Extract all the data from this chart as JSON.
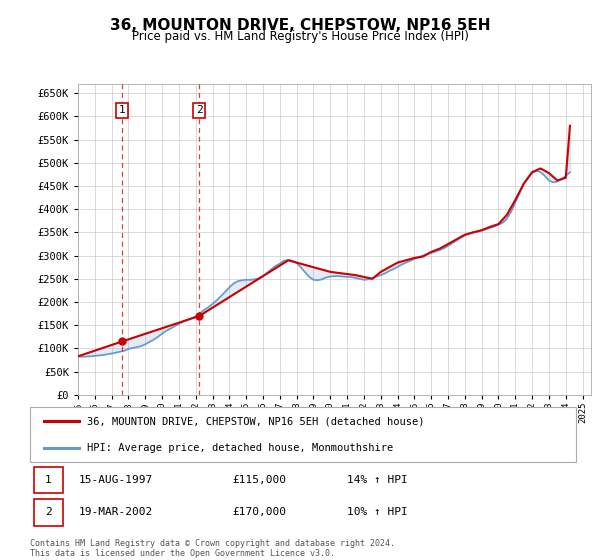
{
  "title": "36, MOUNTON DRIVE, CHEPSTOW, NP16 5EH",
  "subtitle": "Price paid vs. HM Land Registry's House Price Index (HPI)",
  "ylim": [
    0,
    670000
  ],
  "yticks": [
    0,
    50000,
    100000,
    150000,
    200000,
    250000,
    300000,
    350000,
    400000,
    450000,
    500000,
    550000,
    600000,
    650000
  ],
  "xlim_start": 1995.0,
  "xlim_end": 2025.5,
  "red_color": "#cc0000",
  "blue_color": "#6699cc",
  "background": "#ffffff",
  "grid_color": "#cccccc",
  "legend_label_red": "36, MOUNTON DRIVE, CHEPSTOW, NP16 5EH (detached house)",
  "legend_label_blue": "HPI: Average price, detached house, Monmouthshire",
  "sale1_x": 1997.62,
  "sale1_y": 115000,
  "sale2_x": 2002.21,
  "sale2_y": 170000,
  "table_rows": [
    [
      "1",
      "15-AUG-1997",
      "£115,000",
      "14% ↑ HPI"
    ],
    [
      "2",
      "19-MAR-2002",
      "£170,000",
      "10% ↑ HPI"
    ]
  ],
  "footer": "Contains HM Land Registry data © Crown copyright and database right 2024.\nThis data is licensed under the Open Government Licence v3.0.",
  "hpi_years": [
    1995.0,
    1995.25,
    1995.5,
    1995.75,
    1996.0,
    1996.25,
    1996.5,
    1996.75,
    1997.0,
    1997.25,
    1997.5,
    1997.75,
    1998.0,
    1998.25,
    1998.5,
    1998.75,
    1999.0,
    1999.25,
    1999.5,
    1999.75,
    2000.0,
    2000.25,
    2000.5,
    2000.75,
    2001.0,
    2001.25,
    2001.5,
    2001.75,
    2002.0,
    2002.25,
    2002.5,
    2002.75,
    2003.0,
    2003.25,
    2003.5,
    2003.75,
    2004.0,
    2004.25,
    2004.5,
    2004.75,
    2005.0,
    2005.25,
    2005.5,
    2005.75,
    2006.0,
    2006.25,
    2006.5,
    2006.75,
    2007.0,
    2007.25,
    2007.5,
    2007.75,
    2008.0,
    2008.25,
    2008.5,
    2008.75,
    2009.0,
    2009.25,
    2009.5,
    2009.75,
    2010.0,
    2010.25,
    2010.5,
    2010.75,
    2011.0,
    2011.25,
    2011.5,
    2011.75,
    2012.0,
    2012.25,
    2012.5,
    2012.75,
    2013.0,
    2013.25,
    2013.5,
    2013.75,
    2014.0,
    2014.25,
    2014.5,
    2014.75,
    2015.0,
    2015.25,
    2015.5,
    2015.75,
    2016.0,
    2016.25,
    2016.5,
    2016.75,
    2017.0,
    2017.25,
    2017.5,
    2017.75,
    2018.0,
    2018.25,
    2018.5,
    2018.75,
    2019.0,
    2019.25,
    2019.5,
    2019.75,
    2020.0,
    2020.25,
    2020.5,
    2020.75,
    2021.0,
    2021.25,
    2021.5,
    2021.75,
    2022.0,
    2022.25,
    2022.5,
    2022.75,
    2023.0,
    2023.25,
    2023.5,
    2023.75,
    2024.0,
    2024.25
  ],
  "hpi_values": [
    83000,
    82000,
    82500,
    83000,
    84000,
    85000,
    86000,
    87500,
    89000,
    91000,
    93000,
    95000,
    99000,
    101000,
    103000,
    105000,
    109000,
    114000,
    119000,
    125000,
    132000,
    138000,
    143000,
    148000,
    153000,
    158000,
    162000,
    165000,
    169000,
    176000,
    183000,
    189000,
    196000,
    204000,
    213000,
    222000,
    232000,
    240000,
    245000,
    247000,
    248000,
    248000,
    249000,
    251000,
    256000,
    263000,
    271000,
    278000,
    283000,
    289000,
    291000,
    289000,
    284000,
    275000,
    264000,
    254000,
    248000,
    247000,
    249000,
    253000,
    255000,
    256000,
    256000,
    255000,
    254000,
    254000,
    252000,
    250000,
    248000,
    249000,
    252000,
    255000,
    258000,
    262000,
    267000,
    271000,
    276000,
    281000,
    285000,
    289000,
    293000,
    297000,
    300000,
    303000,
    306000,
    309000,
    312000,
    316000,
    321000,
    327000,
    333000,
    339000,
    344000,
    348000,
    351000,
    352000,
    354000,
    357000,
    360000,
    363000,
    367000,
    371000,
    380000,
    395000,
    415000,
    435000,
    455000,
    468000,
    478000,
    483000,
    480000,
    472000,
    462000,
    458000,
    460000,
    465000,
    472000,
    480000
  ],
  "price_years": [
    1995.0,
    1997.62,
    2002.21,
    2007.5,
    2010.0,
    2011.5,
    2012.5,
    2013.0,
    2013.5,
    2014.0,
    2014.5,
    2015.0,
    2015.5,
    2016.0,
    2016.5,
    2017.0,
    2017.5,
    2018.0,
    2018.5,
    2019.0,
    2019.5,
    2020.0,
    2020.5,
    2021.0,
    2021.5,
    2022.0,
    2022.5,
    2023.0,
    2023.5,
    2024.0,
    2024.25
  ],
  "price_values": [
    83000,
    115000,
    170000,
    290000,
    265000,
    258000,
    250000,
    265000,
    275000,
    285000,
    290000,
    295000,
    298000,
    308000,
    315000,
    325000,
    335000,
    345000,
    350000,
    355000,
    362000,
    368000,
    388000,
    420000,
    455000,
    480000,
    488000,
    478000,
    462000,
    468000,
    580000
  ]
}
